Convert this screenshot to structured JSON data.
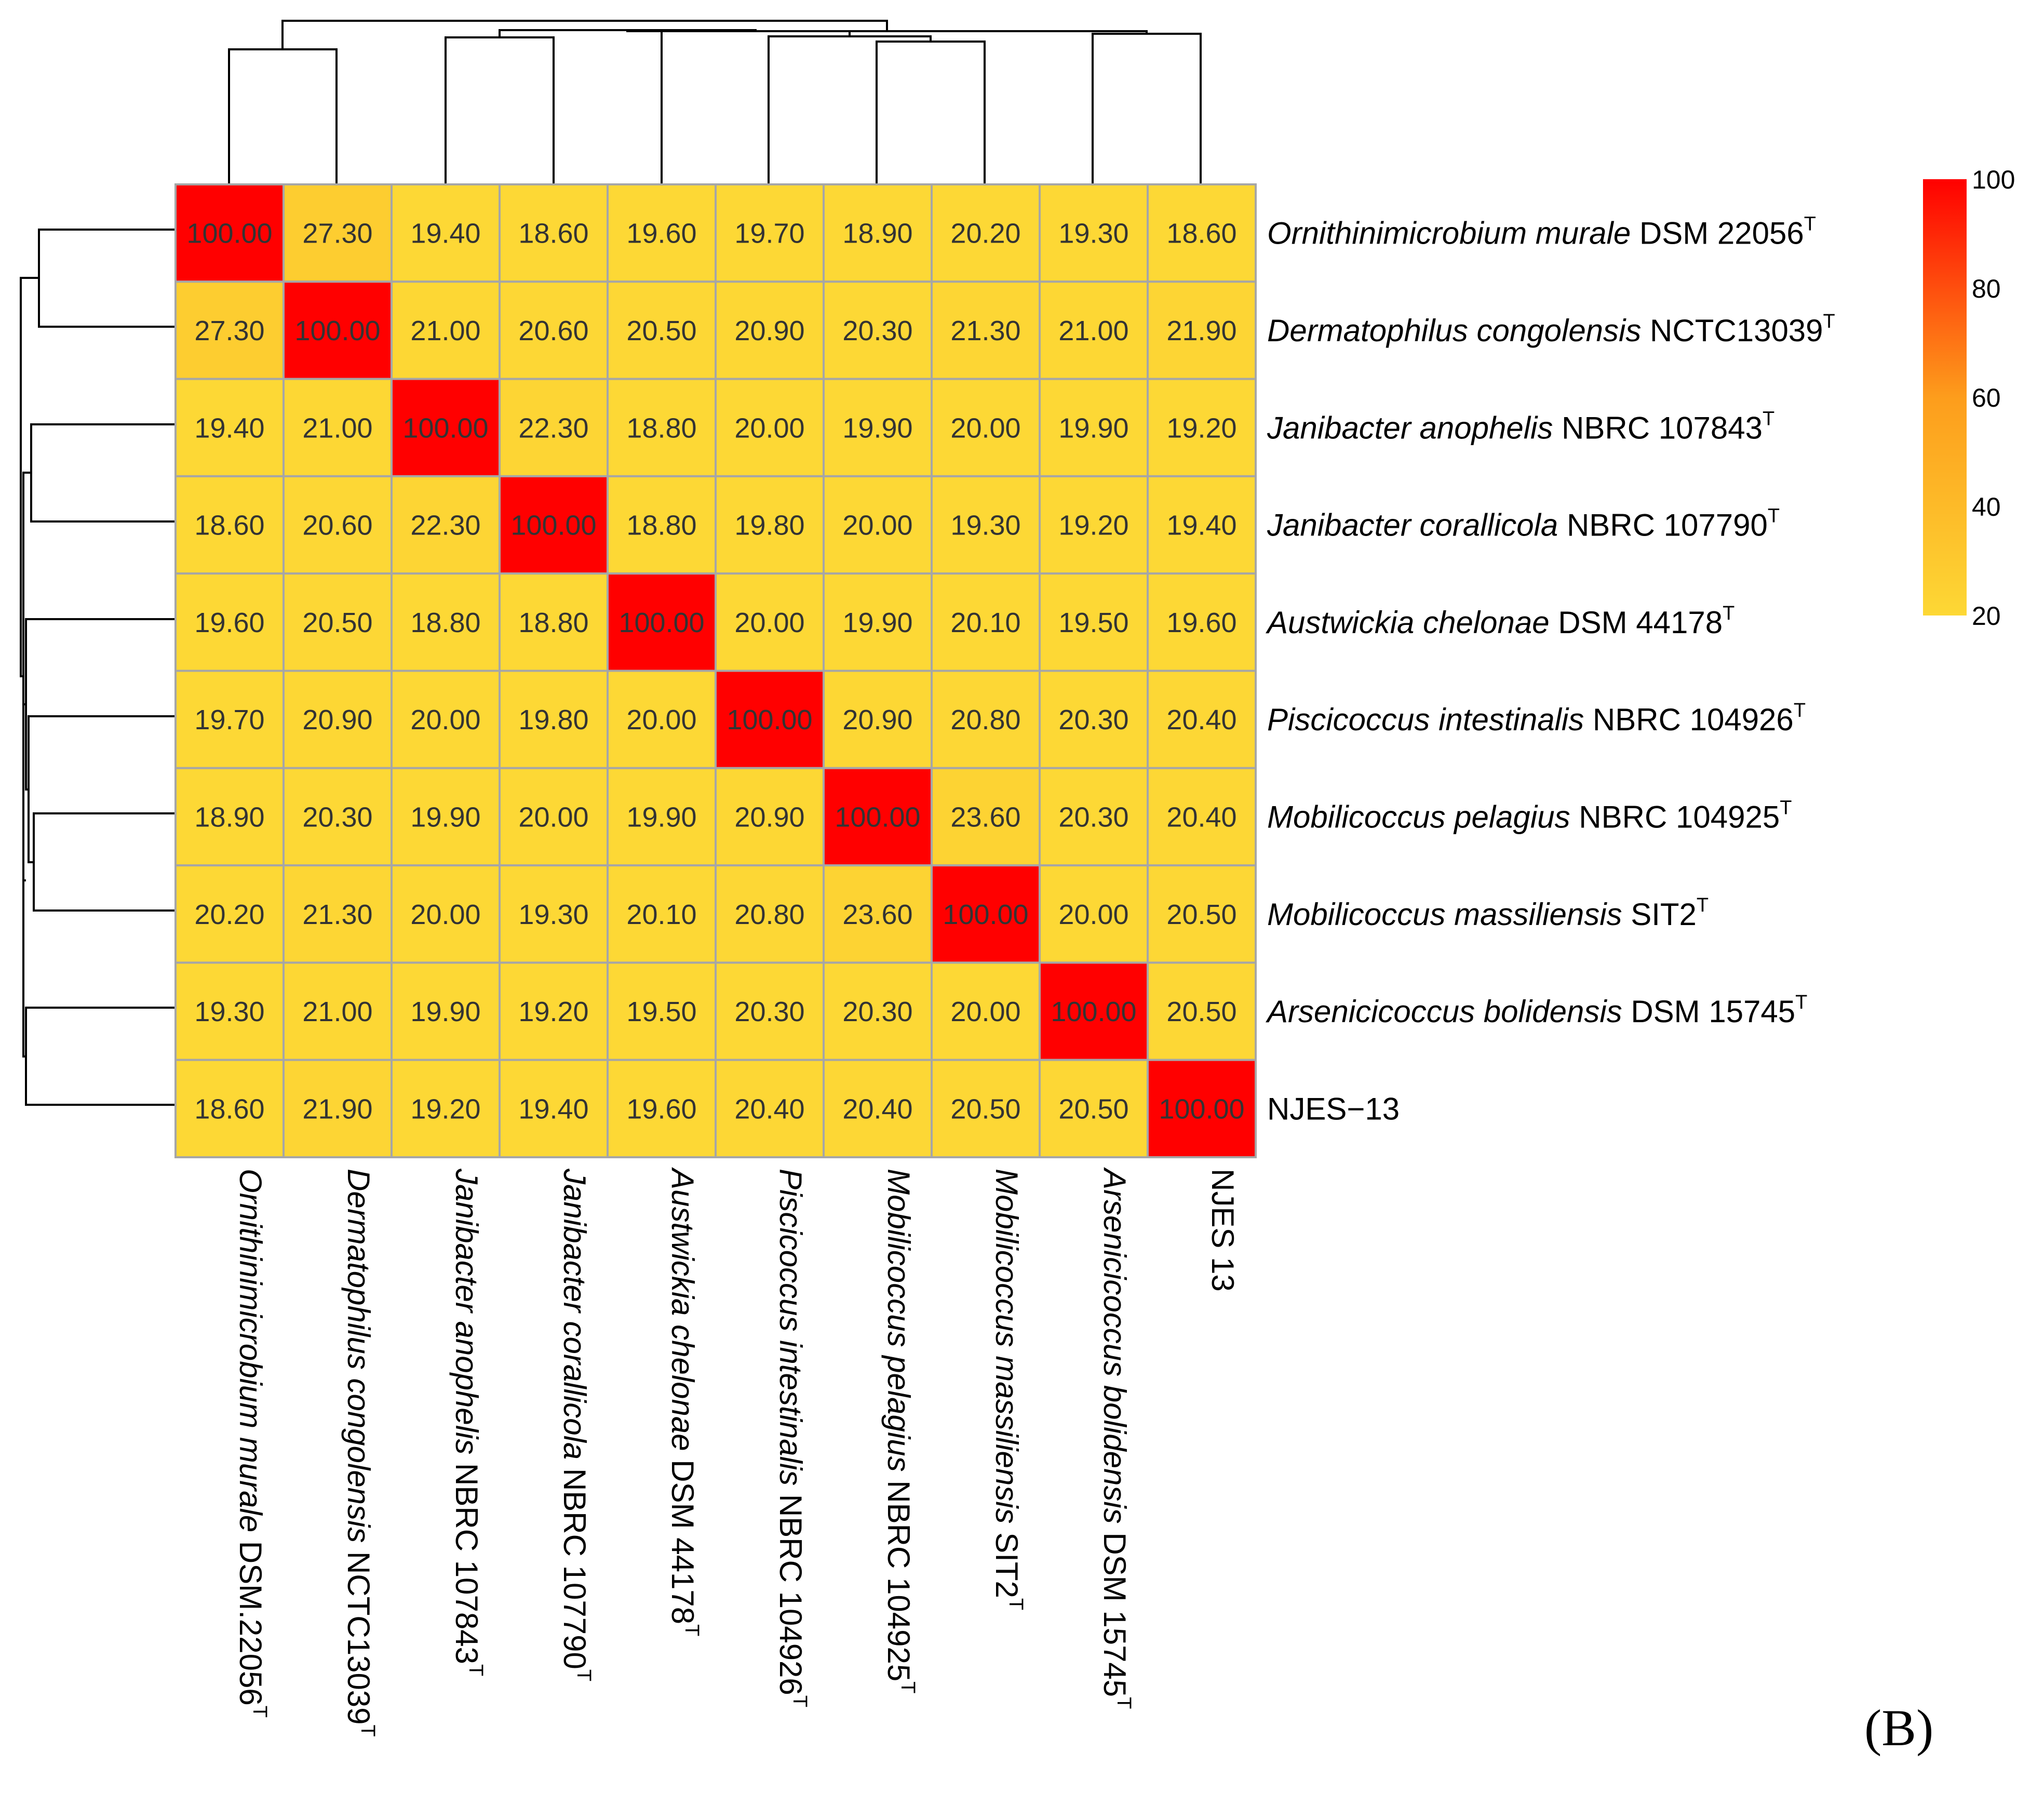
{
  "chart_data": {
    "type": "heatmap",
    "title": "",
    "panel_label": "(B)",
    "row_labels": [
      {
        "italic": "Ornithinimicrobium murale",
        "plain": " DSM 22056",
        "sup": "T"
      },
      {
        "italic": "Dermatophilus congolensis",
        "plain": " NCTC13039",
        "sup": "T"
      },
      {
        "italic": "Janibacter anophelis",
        "plain": " NBRC 107843",
        "sup": "T"
      },
      {
        "italic": "Janibacter corallicola",
        "plain": " NBRC 107790",
        "sup": "T"
      },
      {
        "italic": "Austwickia chelonae",
        "plain": " DSM 44178",
        "sup": "T"
      },
      {
        "italic": "Piscicoccus intestinalis",
        "plain": " NBRC 104926",
        "sup": "T"
      },
      {
        "italic": "Mobilicoccus pelagius",
        "plain": " NBRC 104925",
        "sup": "T"
      },
      {
        "italic": "Mobilicoccus massiliensis",
        "plain": " SIT2",
        "sup": "T"
      },
      {
        "italic": "Arsenicicoccus bolidensis",
        "plain": " DSM 15745",
        "sup": "T"
      },
      {
        "italic": "",
        "plain": "NJES−13",
        "sup": ""
      }
    ],
    "col_labels": [
      {
        "italic": "Ornithinimicrobium murale",
        "plain": " DSM.22056",
        "sup": "T"
      },
      {
        "italic": "Dermatophilus congolensis",
        "plain": " NCTC13039",
        "sup": "T"
      },
      {
        "italic": "Janibacter anophelis",
        "plain": " NBRC 107843",
        "sup": "T"
      },
      {
        "italic": "Janibacter corallicola",
        "plain": " NBRC 107790",
        "sup": "T"
      },
      {
        "italic": "Austwickia chelonae",
        "plain": " DSM 44178",
        "sup": "T"
      },
      {
        "italic": "Piscicoccus intestinalis",
        "plain": " NBRC 104926",
        "sup": "T"
      },
      {
        "italic": "Mobilicoccus pelagius",
        "plain": " NBRC 104925",
        "sup": "T"
      },
      {
        "italic": "Mobilicoccus massiliensis",
        "plain": " SIT2",
        "sup": "T"
      },
      {
        "italic": "Arsenicicoccus bolidensis",
        "plain": " DSM 15745",
        "sup": "T"
      },
      {
        "italic": "",
        "plain": "NJES 13",
        "sup": ""
      }
    ],
    "values": [
      [
        100.0,
        27.3,
        19.4,
        18.6,
        19.6,
        19.7,
        18.9,
        20.2,
        19.3,
        18.6
      ],
      [
        27.3,
        100.0,
        21.0,
        20.6,
        20.5,
        20.9,
        20.3,
        21.3,
        21.0,
        21.9
      ],
      [
        19.4,
        21.0,
        100.0,
        22.3,
        18.8,
        20.0,
        19.9,
        20.0,
        19.9,
        19.2
      ],
      [
        18.6,
        20.6,
        22.3,
        100.0,
        18.8,
        19.8,
        20.0,
        19.3,
        19.2,
        19.4
      ],
      [
        19.6,
        20.5,
        18.8,
        18.8,
        100.0,
        20.0,
        19.9,
        20.1,
        19.5,
        19.6
      ],
      [
        19.7,
        20.9,
        20.0,
        19.8,
        20.0,
        100.0,
        20.9,
        20.8,
        20.3,
        20.4
      ],
      [
        18.9,
        20.3,
        19.9,
        20.0,
        19.9,
        20.9,
        100.0,
        23.6,
        20.3,
        20.4
      ],
      [
        20.2,
        21.3,
        20.0,
        19.3,
        20.1,
        20.8,
        23.6,
        100.0,
        20.0,
        20.5
      ],
      [
        19.3,
        21.0,
        19.9,
        19.2,
        19.5,
        20.3,
        20.3,
        20.0,
        100.0,
        20.5
      ],
      [
        18.6,
        21.9,
        19.2,
        19.4,
        19.6,
        20.4,
        20.4,
        20.5,
        20.5,
        100.0
      ]
    ],
    "colorbar": {
      "min": 20,
      "max": 100,
      "ticks": [
        100,
        80,
        60,
        40,
        20
      ],
      "color_low": "#fdd835",
      "color_mid": "#fd9d1c",
      "color_high": "#ff0000"
    },
    "grid_color": "#a6a6a6",
    "cell_text_color": "#333333"
  }
}
